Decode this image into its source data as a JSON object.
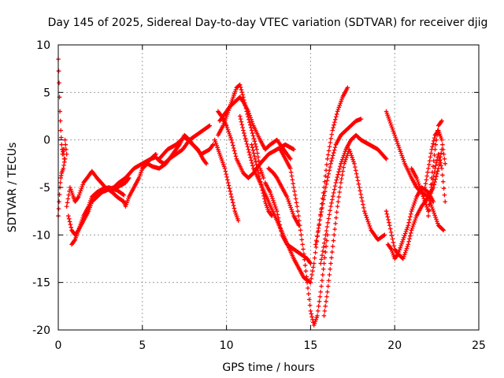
{
  "chart_data": {
    "type": "scatter",
    "title": "Day 145 of 2025, Sidereal Day-to-day VTEC variation (SDTVAR) for receiver djig",
    "xlabel": "GPS time / hours",
    "ylabel": "SDTVAR / TECUs",
    "xlim": [
      0,
      25
    ],
    "ylim": [
      -20,
      10
    ],
    "xticks": [
      "0",
      "5",
      "10",
      "15",
      "20",
      "25"
    ],
    "yticks": [
      "-20",
      "-15",
      "-10",
      "-5",
      "0",
      "5",
      "10"
    ],
    "grid": true,
    "marker": "+",
    "color": "#ff0000",
    "series": [
      {
        "x": [
          0.0,
          0.05,
          0.1,
          0.15,
          0.2,
          0.25,
          0.3,
          0.35,
          0.4,
          0.5
        ],
        "y": [
          8.5,
          6.0,
          3.0,
          1.0,
          -0.5,
          -1.5,
          -1.0,
          -2.0,
          0.0,
          -1.5
        ]
      },
      {
        "x": [
          0.0,
          0.05,
          0.1,
          0.15,
          0.2,
          0.3,
          0.4
        ],
        "y": [
          -8.0,
          -6.5,
          -5.0,
          -4.0,
          -3.5,
          -3.0,
          -2.0
        ]
      },
      {
        "x": [
          0.8,
          1.0,
          1.2,
          1.5,
          1.8,
          2.0,
          2.3,
          2.6,
          3.0,
          3.5,
          4.0,
          4.2
        ],
        "y": [
          -11.0,
          -10.5,
          -9.5,
          -8.5,
          -7.5,
          -6.5,
          -6.0,
          -5.5,
          -5.2,
          -5.0,
          -4.5,
          -4.0
        ]
      },
      {
        "x": [
          0.5,
          0.7,
          0.9,
          1.0,
          1.2,
          1.5,
          1.8,
          2.0,
          2.3,
          2.8,
          3.2,
          3.5,
          3.9,
          4.0,
          4.2,
          4.5,
          4.8,
          5.0,
          5.2,
          5.5,
          5.8
        ],
        "y": [
          -7.0,
          -5.0,
          -6.0,
          -6.5,
          -6.0,
          -4.5,
          -3.8,
          -3.3,
          -4.0,
          -5.0,
          -5.5,
          -6.0,
          -6.5,
          -7.0,
          -6.0,
          -5.0,
          -4.0,
          -3.0,
          -2.5,
          -2.0,
          -1.5
        ]
      },
      {
        "x": [
          0.6,
          0.8,
          1.0,
          1.2,
          1.5,
          1.8,
          2.0,
          2.3,
          2.6,
          3.0,
          3.5,
          3.9
        ],
        "y": [
          -8.0,
          -9.5,
          -10.0,
          -9.5,
          -8.0,
          -7.0,
          -6.0,
          -5.5,
          -5.2,
          -5.0,
          -5.3,
          -5.8
        ]
      },
      {
        "x": [
          2.5,
          3.0,
          3.3,
          3.6,
          4.0,
          4.5,
          5.0,
          5.5,
          5.8,
          6.0,
          6.3,
          6.6,
          7.0,
          7.4,
          7.8,
          8.2,
          8.6,
          9.0
        ],
        "y": [
          -5.5,
          -5.2,
          -5.0,
          -4.5,
          -4.0,
          -3.0,
          -2.5,
          -2.0,
          -1.8,
          -2.2,
          -2.5,
          -2.0,
          -1.5,
          -1.0,
          0.0,
          0.5,
          1.0,
          1.5
        ]
      },
      {
        "x": [
          5.0,
          5.3,
          5.6,
          6.0,
          6.4,
          6.8,
          7.2,
          7.5,
          7.8,
          8.0,
          8.3,
          8.6,
          8.8
        ],
        "y": [
          -3.0,
          -2.5,
          -2.8,
          -3.0,
          -2.5,
          -1.5,
          -0.5,
          0.5,
          0.0,
          -0.5,
          -1.0,
          -2.0,
          -2.5
        ]
      },
      {
        "x": [
          6.0,
          6.5,
          7.0,
          7.5,
          8.0,
          8.5,
          9.0,
          9.2
        ],
        "y": [
          -2.0,
          -1.0,
          -0.5,
          0.3,
          -0.5,
          -1.5,
          -1.0,
          -0.5
        ]
      },
      {
        "x": [
          9.5,
          9.8,
          10.0,
          10.2,
          10.4,
          10.6,
          10.8,
          11.0,
          11.2,
          11.5,
          11.8,
          12.0,
          12.2
        ],
        "y": [
          0.5,
          1.5,
          2.5,
          3.5,
          4.5,
          5.5,
          5.8,
          4.5,
          3.0,
          1.0,
          -1.0,
          -3.0,
          -4.0
        ]
      },
      {
        "x": [
          9.6,
          9.8,
          10.0,
          10.2,
          10.5,
          10.8,
          11.0,
          11.3,
          11.6,
          12.0,
          12.3,
          12.6,
          13.0,
          13.4,
          13.8
        ],
        "y": [
          2.0,
          2.5,
          3.0,
          3.5,
          4.0,
          4.5,
          4.0,
          3.0,
          1.5,
          0.0,
          -1.0,
          -0.5,
          0.0,
          -1.0,
          -2.0
        ]
      },
      {
        "x": [
          9.5,
          9.7,
          10.0,
          10.3,
          10.6,
          11.0,
          11.3,
          11.6,
          12.0,
          12.5,
          13.0,
          13.5,
          14.0
        ],
        "y": [
          3.0,
          2.5,
          1.5,
          0.0,
          -2.0,
          -3.5,
          -4.0,
          -3.5,
          -2.5,
          -1.5,
          -1.0,
          -0.5,
          -1.0
        ]
      },
      {
        "x": [
          9.3,
          9.5,
          9.7,
          9.9,
          10.1,
          10.3,
          10.5,
          10.7
        ],
        "y": [
          0.0,
          -1.0,
          -2.0,
          -3.0,
          -4.5,
          -6.0,
          -7.5,
          -8.5
        ]
      },
      {
        "x": [
          10.8,
          11.0,
          11.3,
          11.6,
          12.0,
          12.5,
          13.0,
          13.5,
          14.0,
          14.3,
          14.6,
          15.0
        ],
        "y": [
          2.5,
          1.0,
          -1.0,
          -3.0,
          -4.5,
          -6.5,
          -8.5,
          -10.5,
          -12.5,
          -13.5,
          -14.5,
          -15.0
        ]
      },
      {
        "x": [
          11.5,
          11.7,
          11.9,
          12.1,
          12.3,
          12.5,
          12.7
        ],
        "y": [
          -0.5,
          -2.0,
          -3.5,
          -5.0,
          -6.5,
          -7.5,
          -8.0
        ]
      },
      {
        "x": [
          12.3,
          12.6,
          13.0,
          13.3,
          13.6,
          14.0,
          14.4,
          14.8,
          15.0
        ],
        "y": [
          -4.5,
          -5.5,
          -7.5,
          -10.0,
          -11.0,
          -11.5,
          -12.0,
          -12.5,
          -13.0
        ]
      },
      {
        "x": [
          12.5,
          12.8,
          13.0,
          13.3,
          13.6,
          14.0,
          14.3
        ],
        "y": [
          -3.0,
          -3.5,
          -4.0,
          -5.0,
          -6.0,
          -8.0,
          -9.0
        ]
      },
      {
        "x": [
          13.2,
          13.5,
          13.8,
          14.0,
          14.2,
          14.4,
          14.6,
          14.8,
          15.0,
          15.2,
          15.4,
          15.6,
          15.8,
          16.0
        ],
        "y": [
          -1.0,
          -2.0,
          -3.0,
          -5.0,
          -7.0,
          -9.5,
          -12.0,
          -15.0,
          -18.0,
          -19.5,
          -18.5,
          -16.0,
          -13.0,
          -10.0
        ]
      },
      {
        "x": [
          15.0,
          15.2,
          15.5,
          15.8,
          16.0,
          16.3,
          16.6,
          16.9,
          17.2
        ],
        "y": [
          -15.0,
          -13.0,
          -9.0,
          -5.0,
          -2.0,
          1.0,
          3.0,
          4.5,
          5.5
        ]
      },
      {
        "x": [
          15.3,
          15.6,
          15.9,
          16.2,
          16.5,
          16.8,
          17.1,
          17.4,
          17.7,
          18.0
        ],
        "y": [
          -11.0,
          -8.0,
          -5.0,
          -2.5,
          -0.5,
          0.5,
          1.0,
          1.5,
          2.0,
          2.2
        ]
      },
      {
        "x": [
          15.6,
          15.9,
          16.2,
          16.5,
          16.8,
          17.1,
          17.4,
          17.7,
          18.0,
          18.5,
          19.0,
          19.5
        ],
        "y": [
          -13.0,
          -10.0,
          -7.0,
          -4.5,
          -2.5,
          -1.0,
          0.0,
          0.5,
          0.0,
          -0.5,
          -1.0,
          -2.0
        ]
      },
      {
        "x": [
          15.8,
          16.0,
          16.2,
          16.4,
          16.6,
          16.8,
          17.0,
          17.3,
          17.6,
          17.9,
          18.2,
          18.6,
          19.0,
          19.4
        ],
        "y": [
          -18.5,
          -16.0,
          -13.0,
          -10.0,
          -7.0,
          -4.5,
          -2.5,
          -1.0,
          -2.5,
          -5.0,
          -7.5,
          -9.5,
          -10.5,
          -10.0
        ]
      },
      {
        "x": [
          19.5,
          19.7,
          20.0,
          20.2,
          20.5,
          20.8,
          21.0,
          21.3,
          21.6,
          22.0,
          22.3,
          22.6,
          22.9
        ],
        "y": [
          -7.5,
          -9.0,
          -11.5,
          -12.0,
          -12.5,
          -11.0,
          -9.5,
          -8.0,
          -7.0,
          -6.0,
          -7.5,
          -9.0,
          -9.5
        ]
      },
      {
        "x": [
          19.6,
          19.8,
          20.0,
          20.2,
          20.5,
          20.8,
          21.0,
          21.3,
          21.6,
          22.0,
          22.3
        ],
        "y": [
          -11.0,
          -11.5,
          -12.5,
          -12.0,
          -10.5,
          -9.0,
          -7.5,
          -6.0,
          -5.0,
          -5.5,
          -6.5
        ]
      },
      {
        "x": [
          19.5,
          19.7,
          20.0,
          20.3,
          20.6,
          21.0,
          21.3,
          21.6,
          22.0,
          22.3,
          22.6,
          22.8
        ],
        "y": [
          3.0,
          2.0,
          0.5,
          -1.0,
          -2.5,
          -4.0,
          -5.0,
          -5.5,
          -6.0,
          -5.0,
          -3.0,
          -1.0
        ]
      },
      {
        "x": [
          21.0,
          21.3,
          21.6,
          22.0,
          22.2,
          22.4,
          22.6,
          22.8
        ],
        "y": [
          -3.0,
          -4.0,
          -5.5,
          -7.5,
          -4.0,
          -1.0,
          1.5,
          2.0
        ]
      },
      {
        "x": [
          21.8,
          22.0,
          22.2,
          22.4,
          22.6,
          22.8,
          23.0
        ],
        "y": [
          -5.0,
          -3.0,
          -1.0,
          0.5,
          1.0,
          0.0,
          -2.5
        ]
      },
      {
        "x": [
          22.0,
          22.2,
          22.4,
          22.6,
          22.8,
          23.0
        ],
        "y": [
          -8.0,
          -5.0,
          -3.0,
          -1.5,
          -3.0,
          -6.5
        ]
      }
    ]
  }
}
